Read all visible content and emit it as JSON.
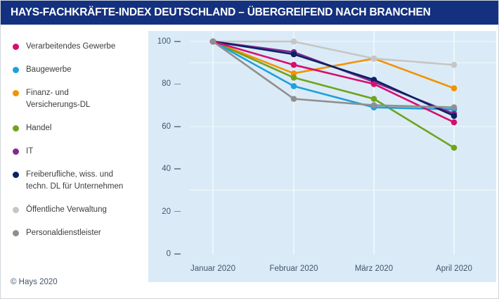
{
  "header": {
    "title": "HAYS-FACHKRÄFTE-INDEX DEUTSCHLAND – ÜBERGREIFEND NACH BRANCHEN",
    "bg_color": "#14317f"
  },
  "footer": {
    "copyright": "© Hays 2020"
  },
  "chart_data": {
    "type": "line",
    "title": "HAYS-FACHKRÄFTE-INDEX DEUTSCHLAND – ÜBERGREIFEND NACH BRANCHEN",
    "categories": [
      "Januar 2020",
      "Februar 2020",
      "März 2020",
      "April 2020"
    ],
    "xlabel": "",
    "ylabel": "",
    "y_ticks": [
      100,
      80,
      60,
      40,
      20,
      0
    ],
    "ylim": [
      0,
      105
    ],
    "grid": {
      "vertical_at_categories": true,
      "horizontal_values": [
        100,
        90,
        60,
        30
      ]
    },
    "legend_position": "left",
    "panel_bg": "#daebf7",
    "gridline_color": "#ffffff",
    "series": [
      {
        "name": "Verarbeitendes Gewerbe",
        "legend_lines": [
          "Verarbeitendes Gewerbe"
        ],
        "color": "#d60f6e",
        "values": [
          100,
          89,
          80,
          62
        ]
      },
      {
        "name": "Baugewerbe",
        "legend_lines": [
          "Baugewerbe"
        ],
        "color": "#1fa0dc",
        "values": [
          100,
          79,
          69,
          68
        ]
      },
      {
        "name": "Finanz- und Versicherungs-DL",
        "legend_lines": [
          "Finanz- und",
          "Versicherungs-DL"
        ],
        "color": "#f39200",
        "values": [
          100,
          85,
          92,
          78
        ]
      },
      {
        "name": "Handel",
        "legend_lines": [
          "Handel"
        ],
        "color": "#6fa41c",
        "values": [
          100,
          83,
          73,
          50
        ]
      },
      {
        "name": "IT",
        "legend_lines": [
          "IT"
        ],
        "color": "#812990",
        "values": [
          100,
          95,
          81,
          66
        ]
      },
      {
        "name": "Freiberufliche, wiss. und techn. DL für Unternehmen",
        "legend_lines": [
          "Freiberufliche, wiss. und",
          "techn. DL für Unternehmen"
        ],
        "color": "#0a2166",
        "values": [
          100,
          94,
          82,
          65
        ]
      },
      {
        "name": "Öffentliche Verwaltung",
        "legend_lines": [
          "Öffentliche Verwaltung"
        ],
        "color": "#c6c6c6",
        "values": [
          100,
          100,
          92,
          89
        ]
      },
      {
        "name": "Personaldienstleister",
        "legend_lines": [
          "Personaldienstleister"
        ],
        "color": "#8f8f8f",
        "values": [
          100,
          73,
          70,
          69
        ]
      }
    ]
  }
}
